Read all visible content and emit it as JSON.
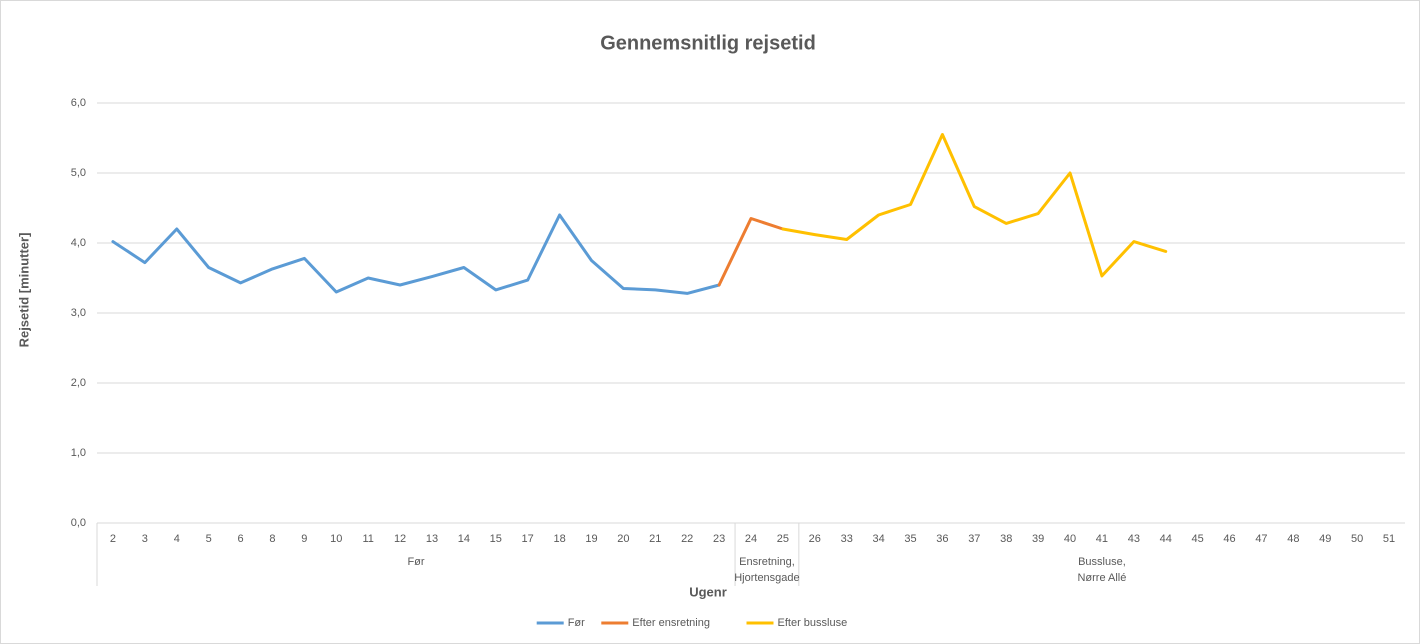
{
  "chart_data": {
    "type": "line",
    "title": "Gennemsnitlig rejsetid",
    "xlabel": "Ugenr",
    "ylabel": "Rejsetid [minutter]",
    "categories": [
      "2",
      "3",
      "4",
      "5",
      "6",
      "8",
      "9",
      "10",
      "11",
      "12",
      "13",
      "14",
      "15",
      "17",
      "18",
      "19",
      "20",
      "21",
      "22",
      "23",
      "24",
      "25",
      "26",
      "33",
      "34",
      "35",
      "36",
      "37",
      "38",
      "39",
      "40",
      "41",
      "43",
      "44",
      "45",
      "46",
      "47",
      "48",
      "49",
      "50",
      "51"
    ],
    "groups": [
      {
        "label": "Før",
        "from": "2",
        "to": "23"
      },
      {
        "label": "Ensretning,\nHjortensgade",
        "from": "24",
        "to": "25"
      },
      {
        "label": "Bussluse,\nNørre Allé",
        "from": "26",
        "to": "51"
      }
    ],
    "series": [
      {
        "name": "Før",
        "color": "#5b9bd5",
        "values": [
          4.02,
          3.72,
          4.2,
          3.65,
          3.43,
          3.63,
          3.78,
          3.3,
          3.5,
          3.4,
          3.52,
          3.65,
          3.33,
          3.47,
          4.4,
          3.75,
          3.35,
          3.33,
          3.28,
          3.4,
          null,
          null,
          null,
          null,
          null,
          null,
          null,
          null,
          null,
          null,
          null,
          null,
          null,
          null,
          null,
          null,
          null,
          null,
          null,
          null,
          null
        ]
      },
      {
        "name": "Efter ensretning",
        "color": "#ed7d31",
        "values": [
          null,
          null,
          null,
          null,
          null,
          null,
          null,
          null,
          null,
          null,
          null,
          null,
          null,
          null,
          null,
          null,
          null,
          null,
          null,
          3.4,
          4.35,
          4.2,
          null,
          null,
          null,
          null,
          null,
          null,
          null,
          null,
          null,
          null,
          null,
          null,
          null,
          null,
          null,
          null,
          null,
          null,
          null
        ]
      },
      {
        "name": "Efter bussluse",
        "color": "#ffc000",
        "values": [
          null,
          null,
          null,
          null,
          null,
          null,
          null,
          null,
          null,
          null,
          null,
          null,
          null,
          null,
          null,
          null,
          null,
          null,
          null,
          null,
          null,
          4.2,
          4.12,
          4.05,
          4.4,
          4.55,
          5.55,
          4.52,
          4.28,
          4.42,
          5.0,
          3.53,
          4.02,
          3.88,
          null,
          null,
          null,
          null,
          null,
          null,
          null
        ]
      }
    ],
    "ylim": [
      0,
      6
    ],
    "yticks": [
      {
        "value": 0,
        "label": "0,0"
      },
      {
        "value": 1,
        "label": "1,0"
      },
      {
        "value": 2,
        "label": "2,0"
      },
      {
        "value": 3,
        "label": "3,0"
      },
      {
        "value": 4,
        "label": "4,0"
      },
      {
        "value": 5,
        "label": "5,0"
      },
      {
        "value": 6,
        "label": "6,0"
      }
    ],
    "grid": true,
    "legend": "bottom"
  }
}
